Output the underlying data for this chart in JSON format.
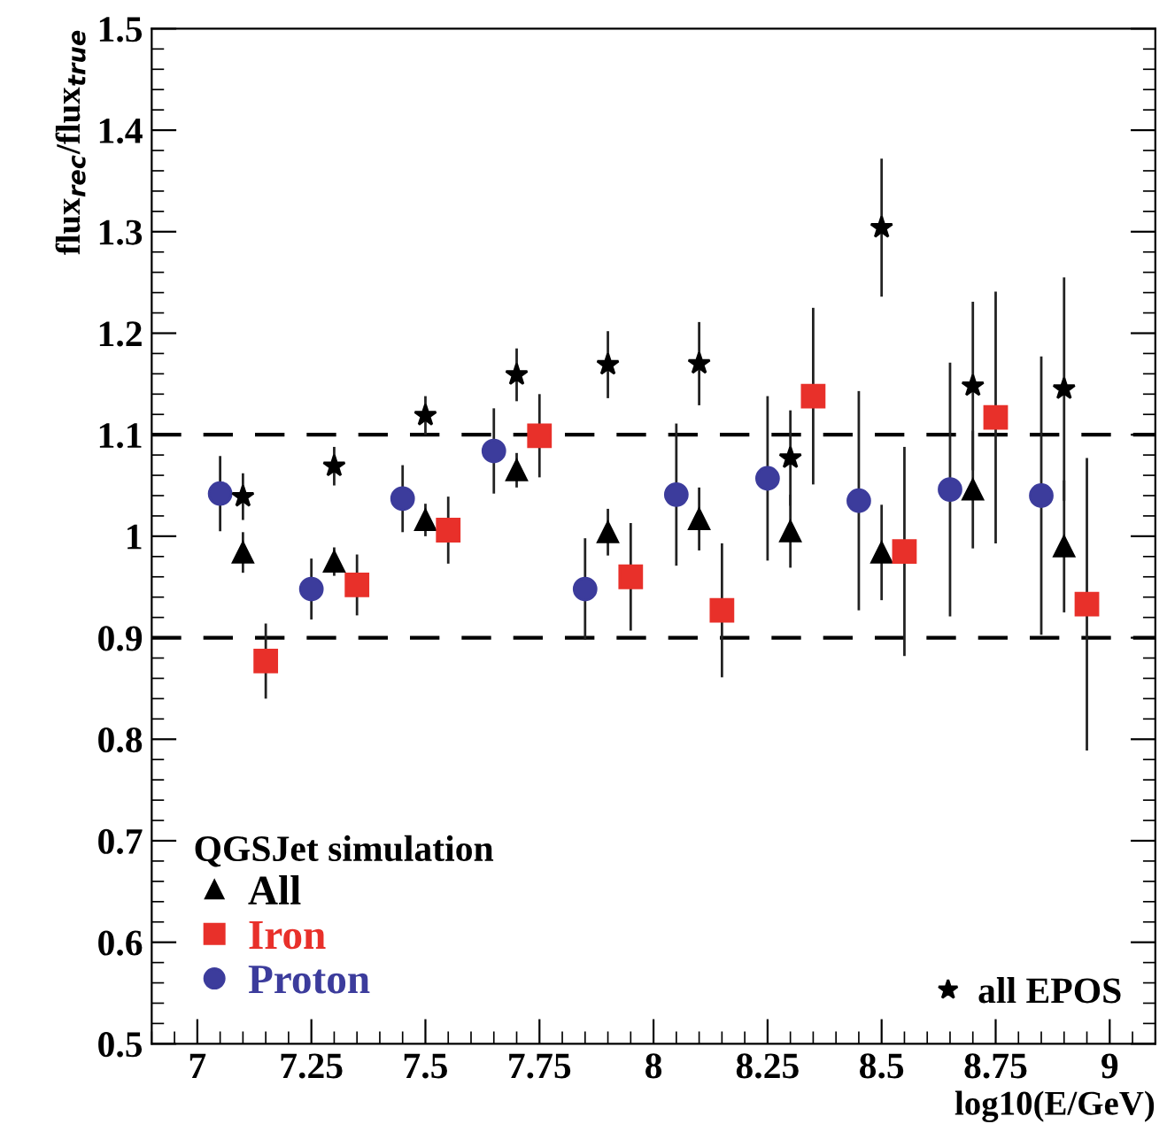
{
  "chart_data": {
    "type": "scatter",
    "xlabel": "log10(E/GeV)",
    "ylabel": "flux$_{rec}$/flux$_{true}$",
    "legend_title": "QGSJet simulation",
    "xlim": [
      6.9,
      9.1
    ],
    "xticks": [
      7,
      7.25,
      7.5,
      7.75,
      8,
      8.25,
      8.5,
      8.75,
      9
    ],
    "ylim": [
      0.5,
      1.5
    ],
    "yticks": [
      0.5,
      0.6,
      0.7,
      0.8,
      0.9,
      1,
      1.1,
      1.2,
      1.3,
      1.4,
      1.5
    ],
    "grid": false,
    "legend": "bottom left",
    "ref_lines": [
      {
        "axis": "y",
        "value": 1.1,
        "line_style": "dashed",
        "color": "#000000"
      },
      {
        "axis": "y",
        "value": 0.9,
        "line_style": "dashed",
        "color": "#000000"
      }
    ],
    "series": [
      {
        "name": "All",
        "color": "#000000",
        "marker": "triangle",
        "x": [
          7.1,
          7.3,
          7.5,
          7.7,
          7.9,
          8.1,
          8.3,
          8.5,
          8.7,
          8.9
        ],
        "values": [
          0.984,
          0.975,
          1.016,
          1.065,
          1.004,
          1.017,
          1.005,
          0.984,
          1.046,
          0.99
        ],
        "errors": [
          0.02,
          0.014,
          0.016,
          0.017,
          0.023,
          0.031,
          0.036,
          0.047,
          0.058,
          0.065
        ]
      },
      {
        "name": "Iron",
        "color": "#e8302a",
        "marker": "square",
        "x": [
          7.15,
          7.35,
          7.55,
          7.75,
          7.95,
          8.15,
          8.35,
          8.55,
          8.75,
          8.95
        ],
        "values": [
          0.877,
          0.952,
          1.006,
          1.099,
          0.96,
          0.927,
          1.138,
          0.985,
          1.117,
          0.933
        ],
        "errors": [
          0.037,
          0.03,
          0.033,
          0.041,
          0.053,
          0.066,
          0.087,
          0.103,
          0.124,
          0.144
        ]
      },
      {
        "name": "Proton",
        "color": "#3c3c9c",
        "marker": "circle",
        "x": [
          7.05,
          7.25,
          7.45,
          7.65,
          7.85,
          8.05,
          8.25,
          8.45,
          8.65,
          8.85
        ],
        "values": [
          1.042,
          0.948,
          1.037,
          1.084,
          0.948,
          1.041,
          1.057,
          1.035,
          1.046,
          1.04
        ],
        "errors": [
          0.037,
          0.03,
          0.033,
          0.042,
          0.05,
          0.07,
          0.081,
          0.108,
          0.125,
          0.137
        ]
      },
      {
        "name": "all EPOS",
        "color": "#000000",
        "marker": "star",
        "x": [
          7.1,
          7.3,
          7.5,
          7.7,
          7.9,
          8.1,
          8.3,
          8.5,
          8.7,
          8.9
        ],
        "values": [
          1.039,
          1.069,
          1.119,
          1.159,
          1.169,
          1.17,
          1.077,
          1.304,
          1.148,
          1.145
        ],
        "errors": [
          0.023,
          0.019,
          0.019,
          0.026,
          0.033,
          0.041,
          0.047,
          0.068,
          0.083,
          0.11
        ]
      }
    ]
  }
}
